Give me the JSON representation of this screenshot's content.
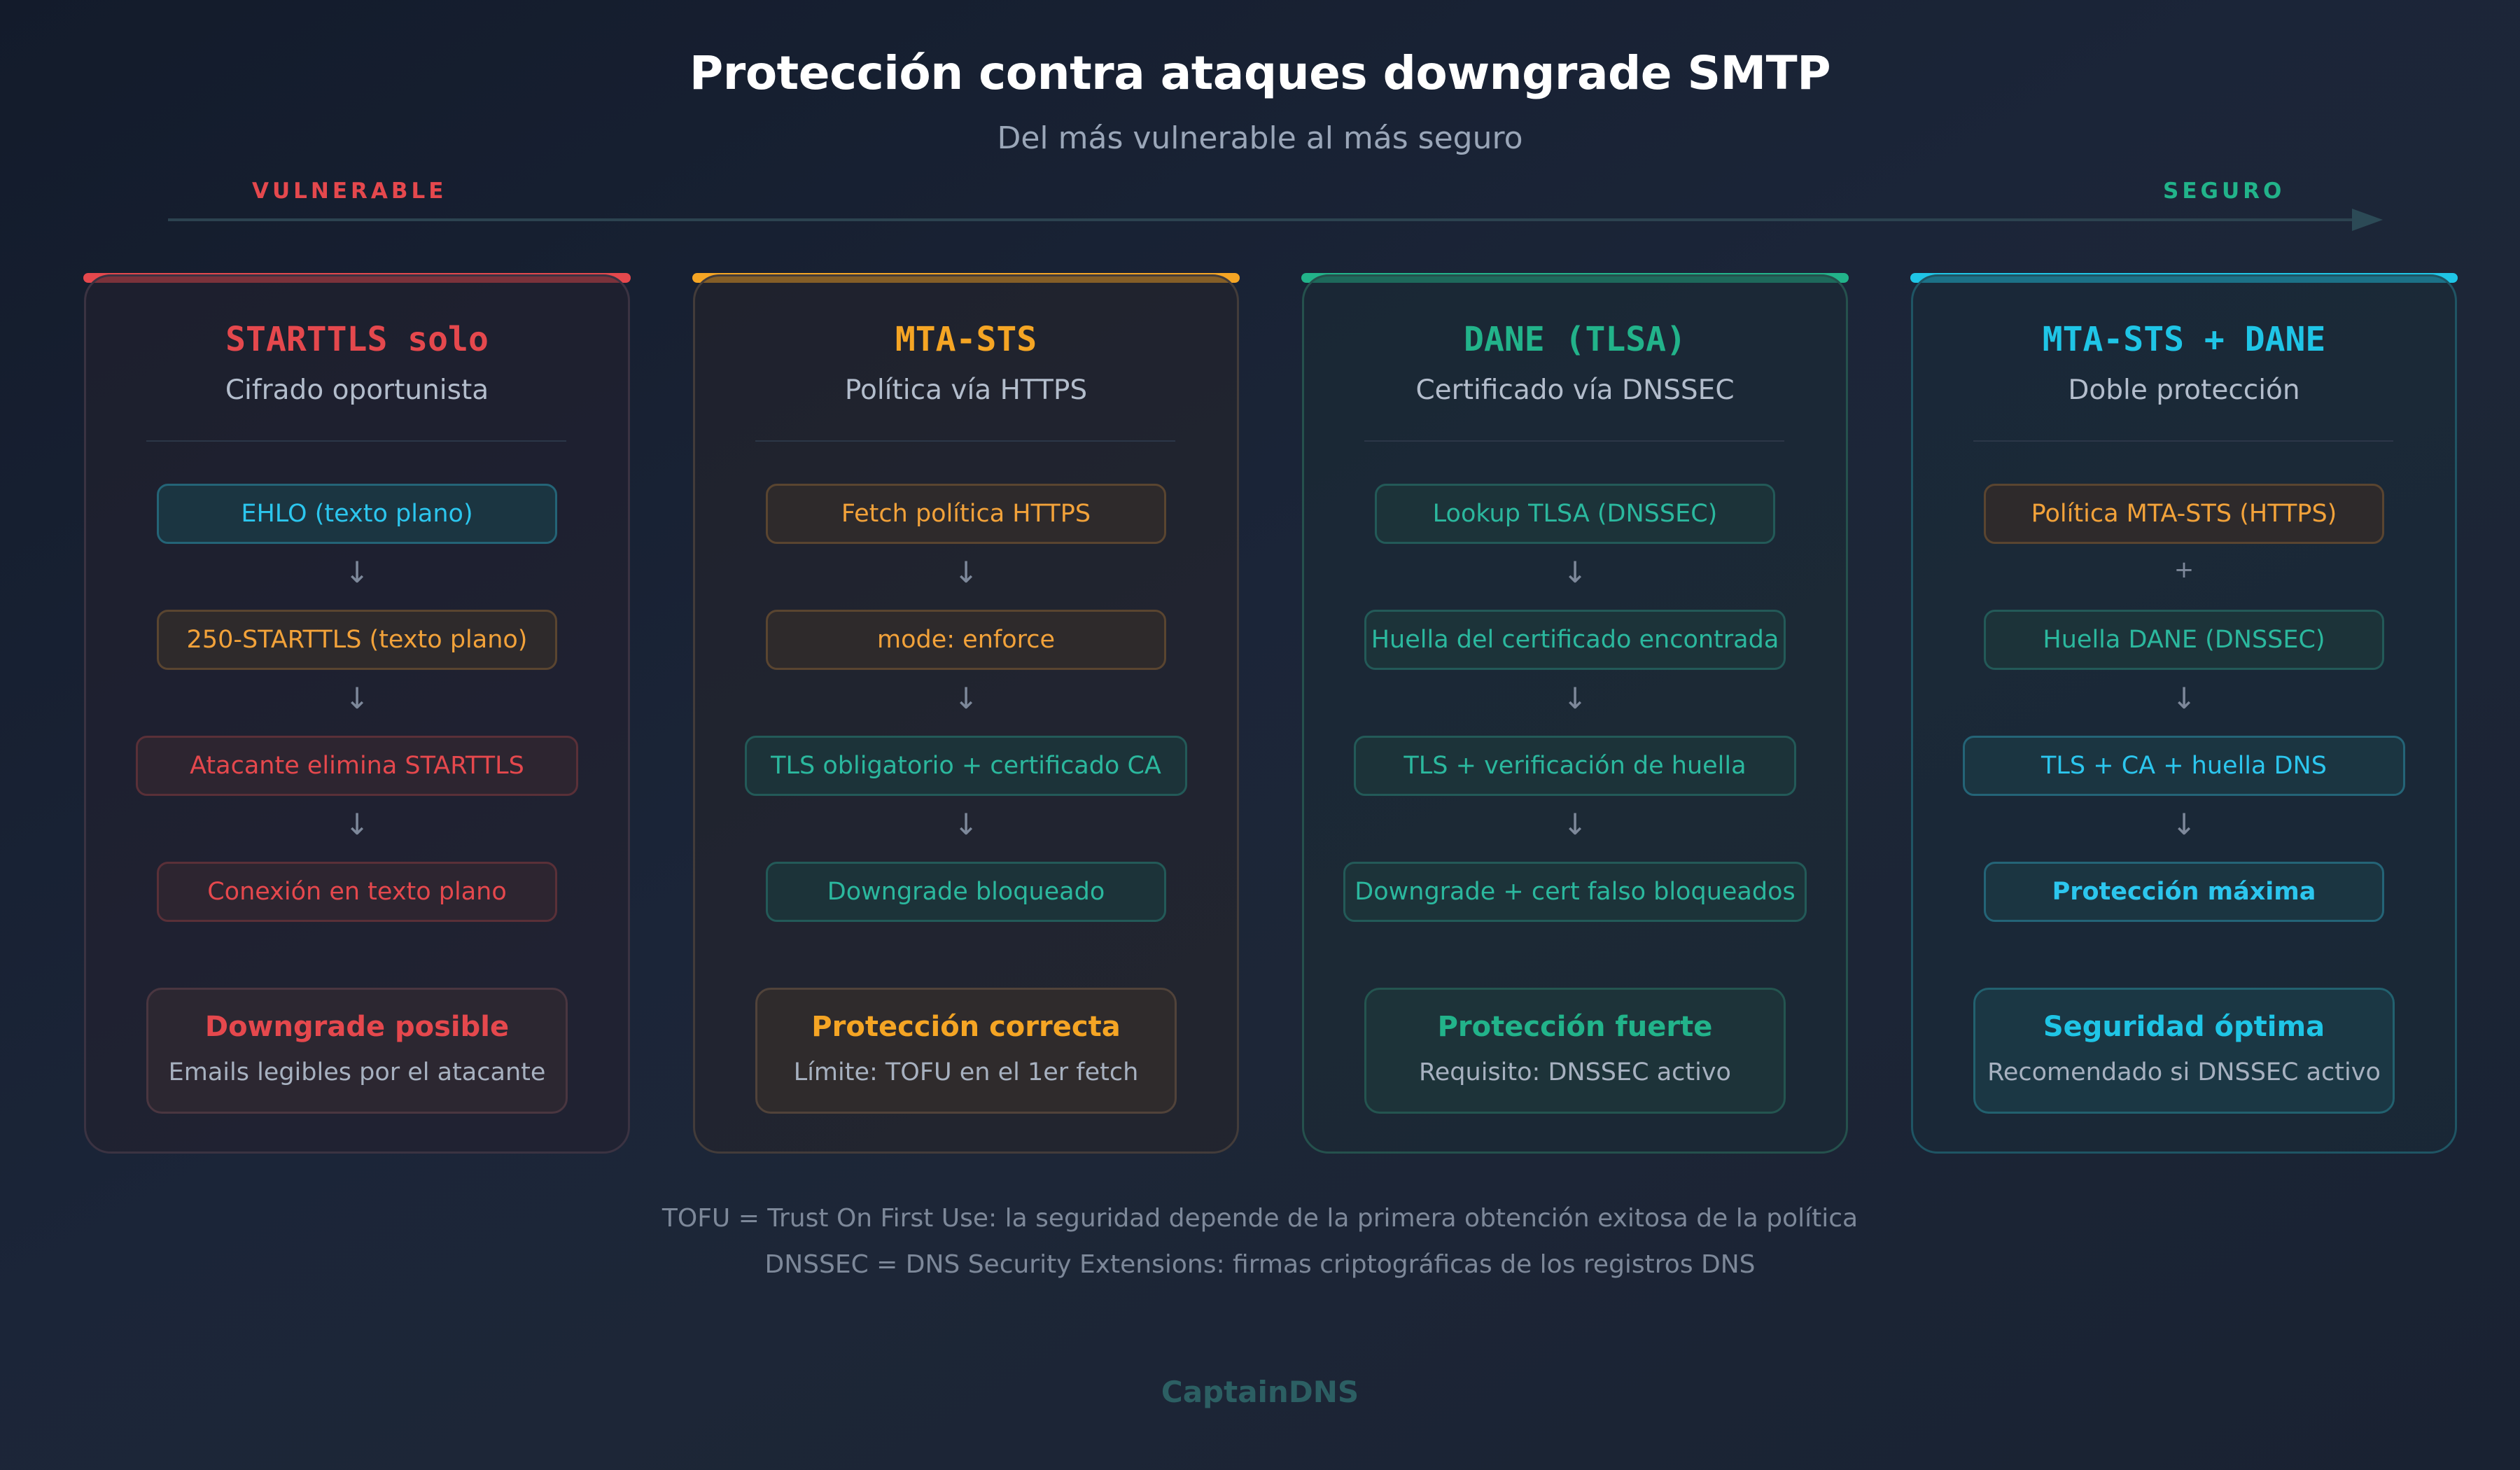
{
  "title": "Protección contra ataques downgrade SMTP",
  "subtitle": "Del más vulnerable al más seguro",
  "scale": {
    "left_label": "VULNERABLE",
    "right_label": "SEGURO"
  },
  "colors": {
    "red": "#e5484d",
    "orange": "#f5a524",
    "green": "#22b38a",
    "cyan": "#1fc5e6",
    "teal": "#2bb89e"
  },
  "columns": [
    {
      "title": "STARTTLS solo",
      "subtitle": "Cifrado oportunista",
      "accent": "#e5484d",
      "steps": [
        {
          "label": "EHLO (texto plano)",
          "tone": "cyan"
        },
        {
          "label": "250-STARTTLS (texto plano)",
          "tone": "orange"
        },
        {
          "label": "Atacante elimina STARTTLS",
          "tone": "red"
        },
        {
          "label": "Conexión en texto plano",
          "tone": "red"
        }
      ],
      "connectors": [
        "↓",
        "↓",
        "↓"
      ],
      "summary": {
        "title": "Downgrade posible",
        "description": "Emails legibles por el atacante"
      }
    },
    {
      "title": "MTA-STS",
      "subtitle": "Política vía HTTPS",
      "accent": "#f5a524",
      "steps": [
        {
          "label": "Fetch política HTTPS",
          "tone": "orange"
        },
        {
          "label": "mode: enforce",
          "tone": "orange"
        },
        {
          "label": "TLS obligatorio + certificado CA",
          "tone": "teal"
        },
        {
          "label": "Downgrade bloqueado",
          "tone": "teal"
        }
      ],
      "connectors": [
        "↓",
        "↓",
        "↓"
      ],
      "summary": {
        "title": "Protección correcta",
        "description": "Límite: TOFU en el 1er fetch"
      }
    },
    {
      "title": "DANE (TLSA)",
      "subtitle": "Certificado vía DNSSEC",
      "accent": "#22b38a",
      "steps": [
        {
          "label": "Lookup TLSA (DNSSEC)",
          "tone": "teal"
        },
        {
          "label": "Huella del certificado encontrada",
          "tone": "teal"
        },
        {
          "label": "TLS + verificación de huella",
          "tone": "teal"
        },
        {
          "label": "Downgrade + cert falso bloqueados",
          "tone": "teal"
        }
      ],
      "connectors": [
        "↓",
        "↓",
        "↓"
      ],
      "summary": {
        "title": "Protección fuerte",
        "description": "Requisito: DNSSEC activo"
      }
    },
    {
      "title": "MTA-STS + DANE",
      "subtitle": "Doble protección",
      "accent": "#1fc5e6",
      "steps": [
        {
          "label": "Política MTA-STS (HTTPS)",
          "tone": "orange"
        },
        {
          "label": "Huella DANE (DNSSEC)",
          "tone": "teal"
        },
        {
          "label": "TLS + CA + huella DNS",
          "tone": "cyan"
        },
        {
          "label": "Protección máxima",
          "tone": "cyan"
        }
      ],
      "connectors": [
        "+",
        "↓",
        "↓"
      ],
      "summary": {
        "title": "Seguridad óptima",
        "description": "Recomendado si DNSSEC activo"
      }
    }
  ],
  "footnotes": [
    "TOFU = Trust On First Use: la seguridad depende de la primera obtención exitosa de la política",
    "DNSSEC = DNS Security Extensions: firmas criptográficas de los registros DNS"
  ],
  "brand": "CaptainDNS"
}
